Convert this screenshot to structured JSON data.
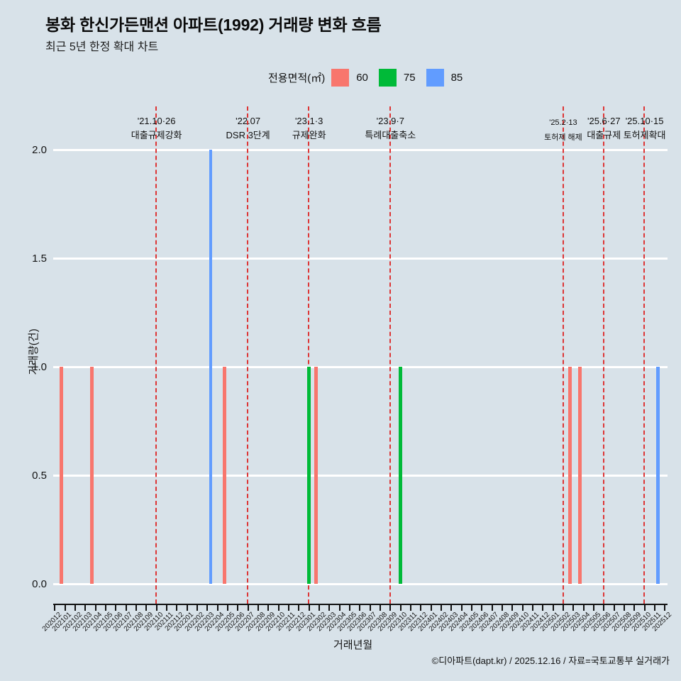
{
  "header": {
    "title": "봉화 한신가든맨션 아파트(1992) 거래량 변화 흐름",
    "subtitle": "최근 5년 한정 확대 차트"
  },
  "legend": {
    "label": "전용면적(㎡)",
    "items": [
      {
        "label": "60",
        "color": "#F8766D"
      },
      {
        "label": "75",
        "color": "#00BA38"
      },
      {
        "label": "85",
        "color": "#619CFF"
      }
    ]
  },
  "footer": {
    "credit": "©디아파트(dapt.kr) / 2025.12.16 / 자료=국토교통부 실거래가"
  },
  "chart_data": {
    "type": "bar",
    "title": "봉화 한신가든맨션 아파트(1992) 거래량 변화 흐름",
    "subtitle": "최근 5년 한정 확대 차트",
    "xlabel": "거래년월",
    "ylabel": "거래량(건)",
    "ylim": [
      0,
      2
    ],
    "yticks": [
      "0.0",
      "0.5",
      "1.0",
      "1.5",
      "2.0"
    ],
    "grid": true,
    "legend_position": "top",
    "background": "#D8E2E9",
    "gridline_color": "#FFFFFF",
    "event_line_color": "#DD3535",
    "categories": [
      "202012",
      "202101",
      "202102",
      "202103",
      "202104",
      "202105",
      "202106",
      "202107",
      "202108",
      "202109",
      "202110",
      "202111",
      "202112",
      "202201",
      "202202",
      "202203",
      "202204",
      "202205",
      "202206",
      "202207",
      "202208",
      "202209",
      "202210",
      "202211",
      "202212",
      "202301",
      "202302",
      "202303",
      "202304",
      "202305",
      "202306",
      "202307",
      "202308",
      "202309",
      "202310",
      "202311",
      "202312",
      "202401",
      "202402",
      "202403",
      "202404",
      "202405",
      "202406",
      "202407",
      "202408",
      "202409",
      "202410",
      "202411",
      "202412",
      "202501",
      "202502",
      "202503",
      "202504",
      "202505",
      "202506",
      "202507",
      "202508",
      "202509",
      "202510",
      "202511",
      "202512"
    ],
    "series": [
      {
        "name": "60",
        "color": "#F8766D",
        "points": {
          "202101": 1,
          "202104": 1,
          "202205": 1,
          "202302": 1,
          "202503": 1,
          "202504": 1
        }
      },
      {
        "name": "75",
        "color": "#00BA38",
        "points": {
          "202301": 1,
          "202310": 1
        }
      },
      {
        "name": "85",
        "color": "#619CFF",
        "points": {
          "202203": 2,
          "202511": 1
        }
      }
    ],
    "event_lines": [
      {
        "month": "202110",
        "date": "'21.10·26",
        "label": "대출규제강화",
        "small": false
      },
      {
        "month": "202207",
        "date": "'22.07",
        "label": "DSR 3단계",
        "small": false
      },
      {
        "month": "202301",
        "date": "'23.1·3",
        "label": "규제완화",
        "small": false
      },
      {
        "month": "202309",
        "date": "'23.9·7",
        "label": "특례대출축소",
        "small": false
      },
      {
        "month": "202502",
        "date": "'25.2·13",
        "label": "토허제 해제",
        "small": true
      },
      {
        "month": "202506",
        "date": "'25.6·27",
        "label": "대출규제",
        "small": false
      },
      {
        "month": "202510",
        "date": "'25.10·15",
        "label": "토허제확대",
        "small": false
      }
    ]
  }
}
